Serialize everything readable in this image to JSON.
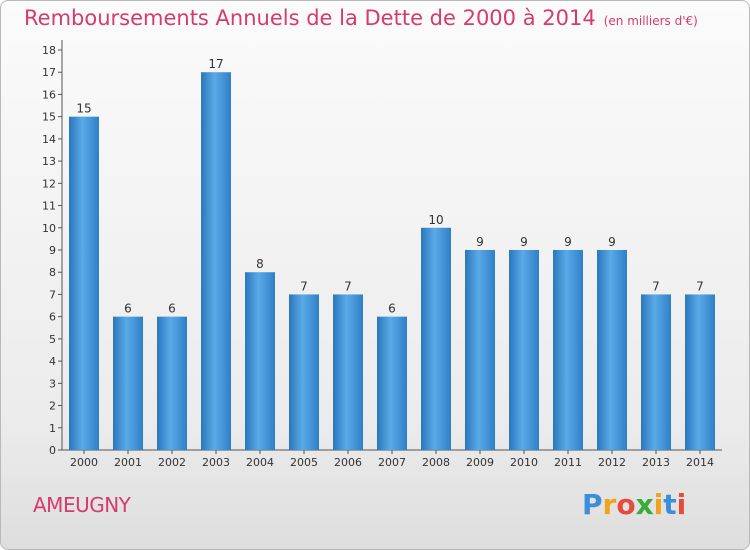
{
  "title": "Remboursements Annuels de la Dette de 2000 à 2014",
  "subtitle": "(en milliers d'€)",
  "commune": "AMEUGNY",
  "brand": {
    "letters": [
      "P",
      "r",
      "o",
      "x",
      "i",
      "t",
      "i"
    ],
    "colors": [
      "#3b8ed8",
      "#f0a21a",
      "#e64b3c",
      "#3aaa3a",
      "#f0a21a",
      "#3b8ed8",
      "#e64b3c"
    ]
  },
  "colors": {
    "bar": "#3d8fd6",
    "title": "#d63a6f"
  },
  "chart_data": {
    "type": "bar",
    "categories": [
      "2000",
      "2001",
      "2002",
      "2003",
      "2004",
      "2005",
      "2006",
      "2007",
      "2008",
      "2009",
      "2010",
      "2011",
      "2012",
      "2013",
      "2014"
    ],
    "values": [
      15,
      6,
      6,
      17,
      8,
      7,
      7,
      6,
      10,
      9,
      9,
      9,
      9,
      7,
      7
    ],
    "yticks": [
      0,
      1,
      2,
      3,
      4,
      5,
      6,
      7,
      8,
      9,
      10,
      11,
      12,
      13,
      14,
      15,
      16,
      17,
      18
    ],
    "ylim": [
      0,
      18
    ],
    "grid": false,
    "legend": "none"
  }
}
